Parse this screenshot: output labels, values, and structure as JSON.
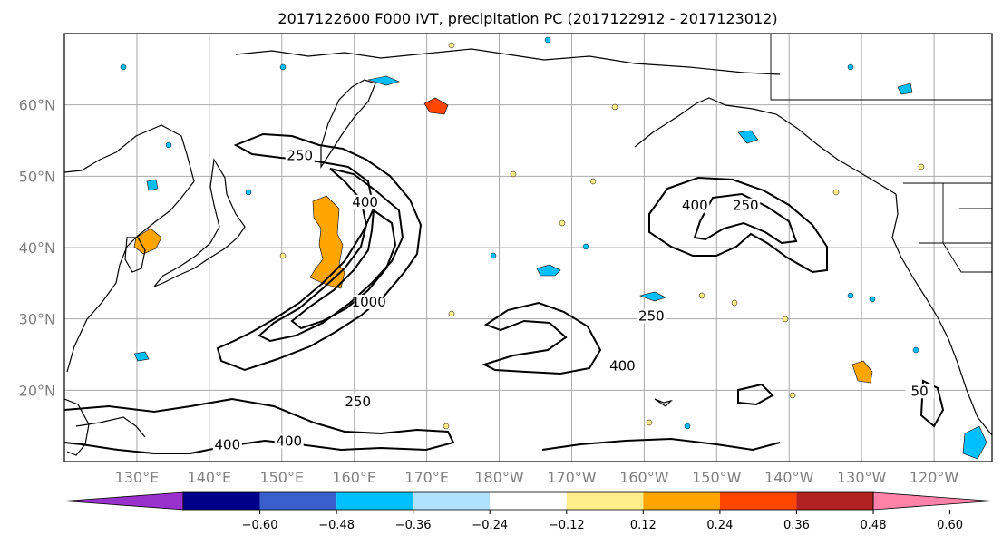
{
  "title": "2017122600 F000 IVT, precipitation PC (2017122912 - 2017123012)",
  "map": {
    "lon_min": 120,
    "lon_max": 248,
    "lat_min": 10,
    "lat_max": 70,
    "lat_ticks": [
      {
        "lat": 20,
        "label": "20°N"
      },
      {
        "lat": 30,
        "label": "30°N"
      },
      {
        "lat": 40,
        "label": "40°N"
      },
      {
        "lat": 50,
        "label": "50°N"
      },
      {
        "lat": 60,
        "label": "60°N"
      }
    ],
    "lon_ticks": [
      {
        "lon": 130,
        "label": "130°E"
      },
      {
        "lon": 140,
        "label": "140°E"
      },
      {
        "lon": 150,
        "label": "150°E"
      },
      {
        "lon": 160,
        "label": "160°E"
      },
      {
        "lon": 170,
        "label": "170°E"
      },
      {
        "lon": 180,
        "label": "180°W"
      },
      {
        "lon": 190,
        "label": "170°W"
      },
      {
        "lon": 200,
        "label": "160°W"
      },
      {
        "lon": 210,
        "label": "150°W"
      },
      {
        "lon": 220,
        "label": "140°W"
      },
      {
        "lon": 230,
        "label": "130°W"
      },
      {
        "lon": 240,
        "label": "120°W"
      }
    ],
    "contour_labels": [
      {
        "text": "250",
        "lon": 152.5,
        "lat": 52.5
      },
      {
        "text": "400",
        "lon": 161.5,
        "lat": 46
      },
      {
        "text": "1000",
        "lon": 162,
        "lat": 32
      },
      {
        "text": "250",
        "lon": 201,
        "lat": 30
      },
      {
        "text": "400",
        "lon": 197,
        "lat": 23
      },
      {
        "text": "400",
        "lon": 207,
        "lat": 45.5
      },
      {
        "text": "250",
        "lon": 214,
        "lat": 45.5
      },
      {
        "text": "250",
        "lon": 160.5,
        "lat": 18
      },
      {
        "text": "400",
        "lon": 151,
        "lat": 12.5
      },
      {
        "text": "400",
        "lon": 142.5,
        "lat": 12
      },
      {
        "text": "50",
        "lon": 238,
        "lat": 19.5
      }
    ]
  },
  "colorbar": {
    "colors": [
      "#9932cc",
      "#00008b",
      "#3a5fcd",
      "#00bfff",
      "#b0e2ff",
      "#ffffff",
      "#ffec8b",
      "#ffa500",
      "#ff4500",
      "#b22222",
      "#ff82ab"
    ],
    "ticks": [
      "−0.60",
      "−0.48",
      "−0.36",
      "−0.24",
      "−0.12",
      "0.12",
      "0.24",
      "0.36",
      "0.48",
      "0.60"
    ]
  }
}
